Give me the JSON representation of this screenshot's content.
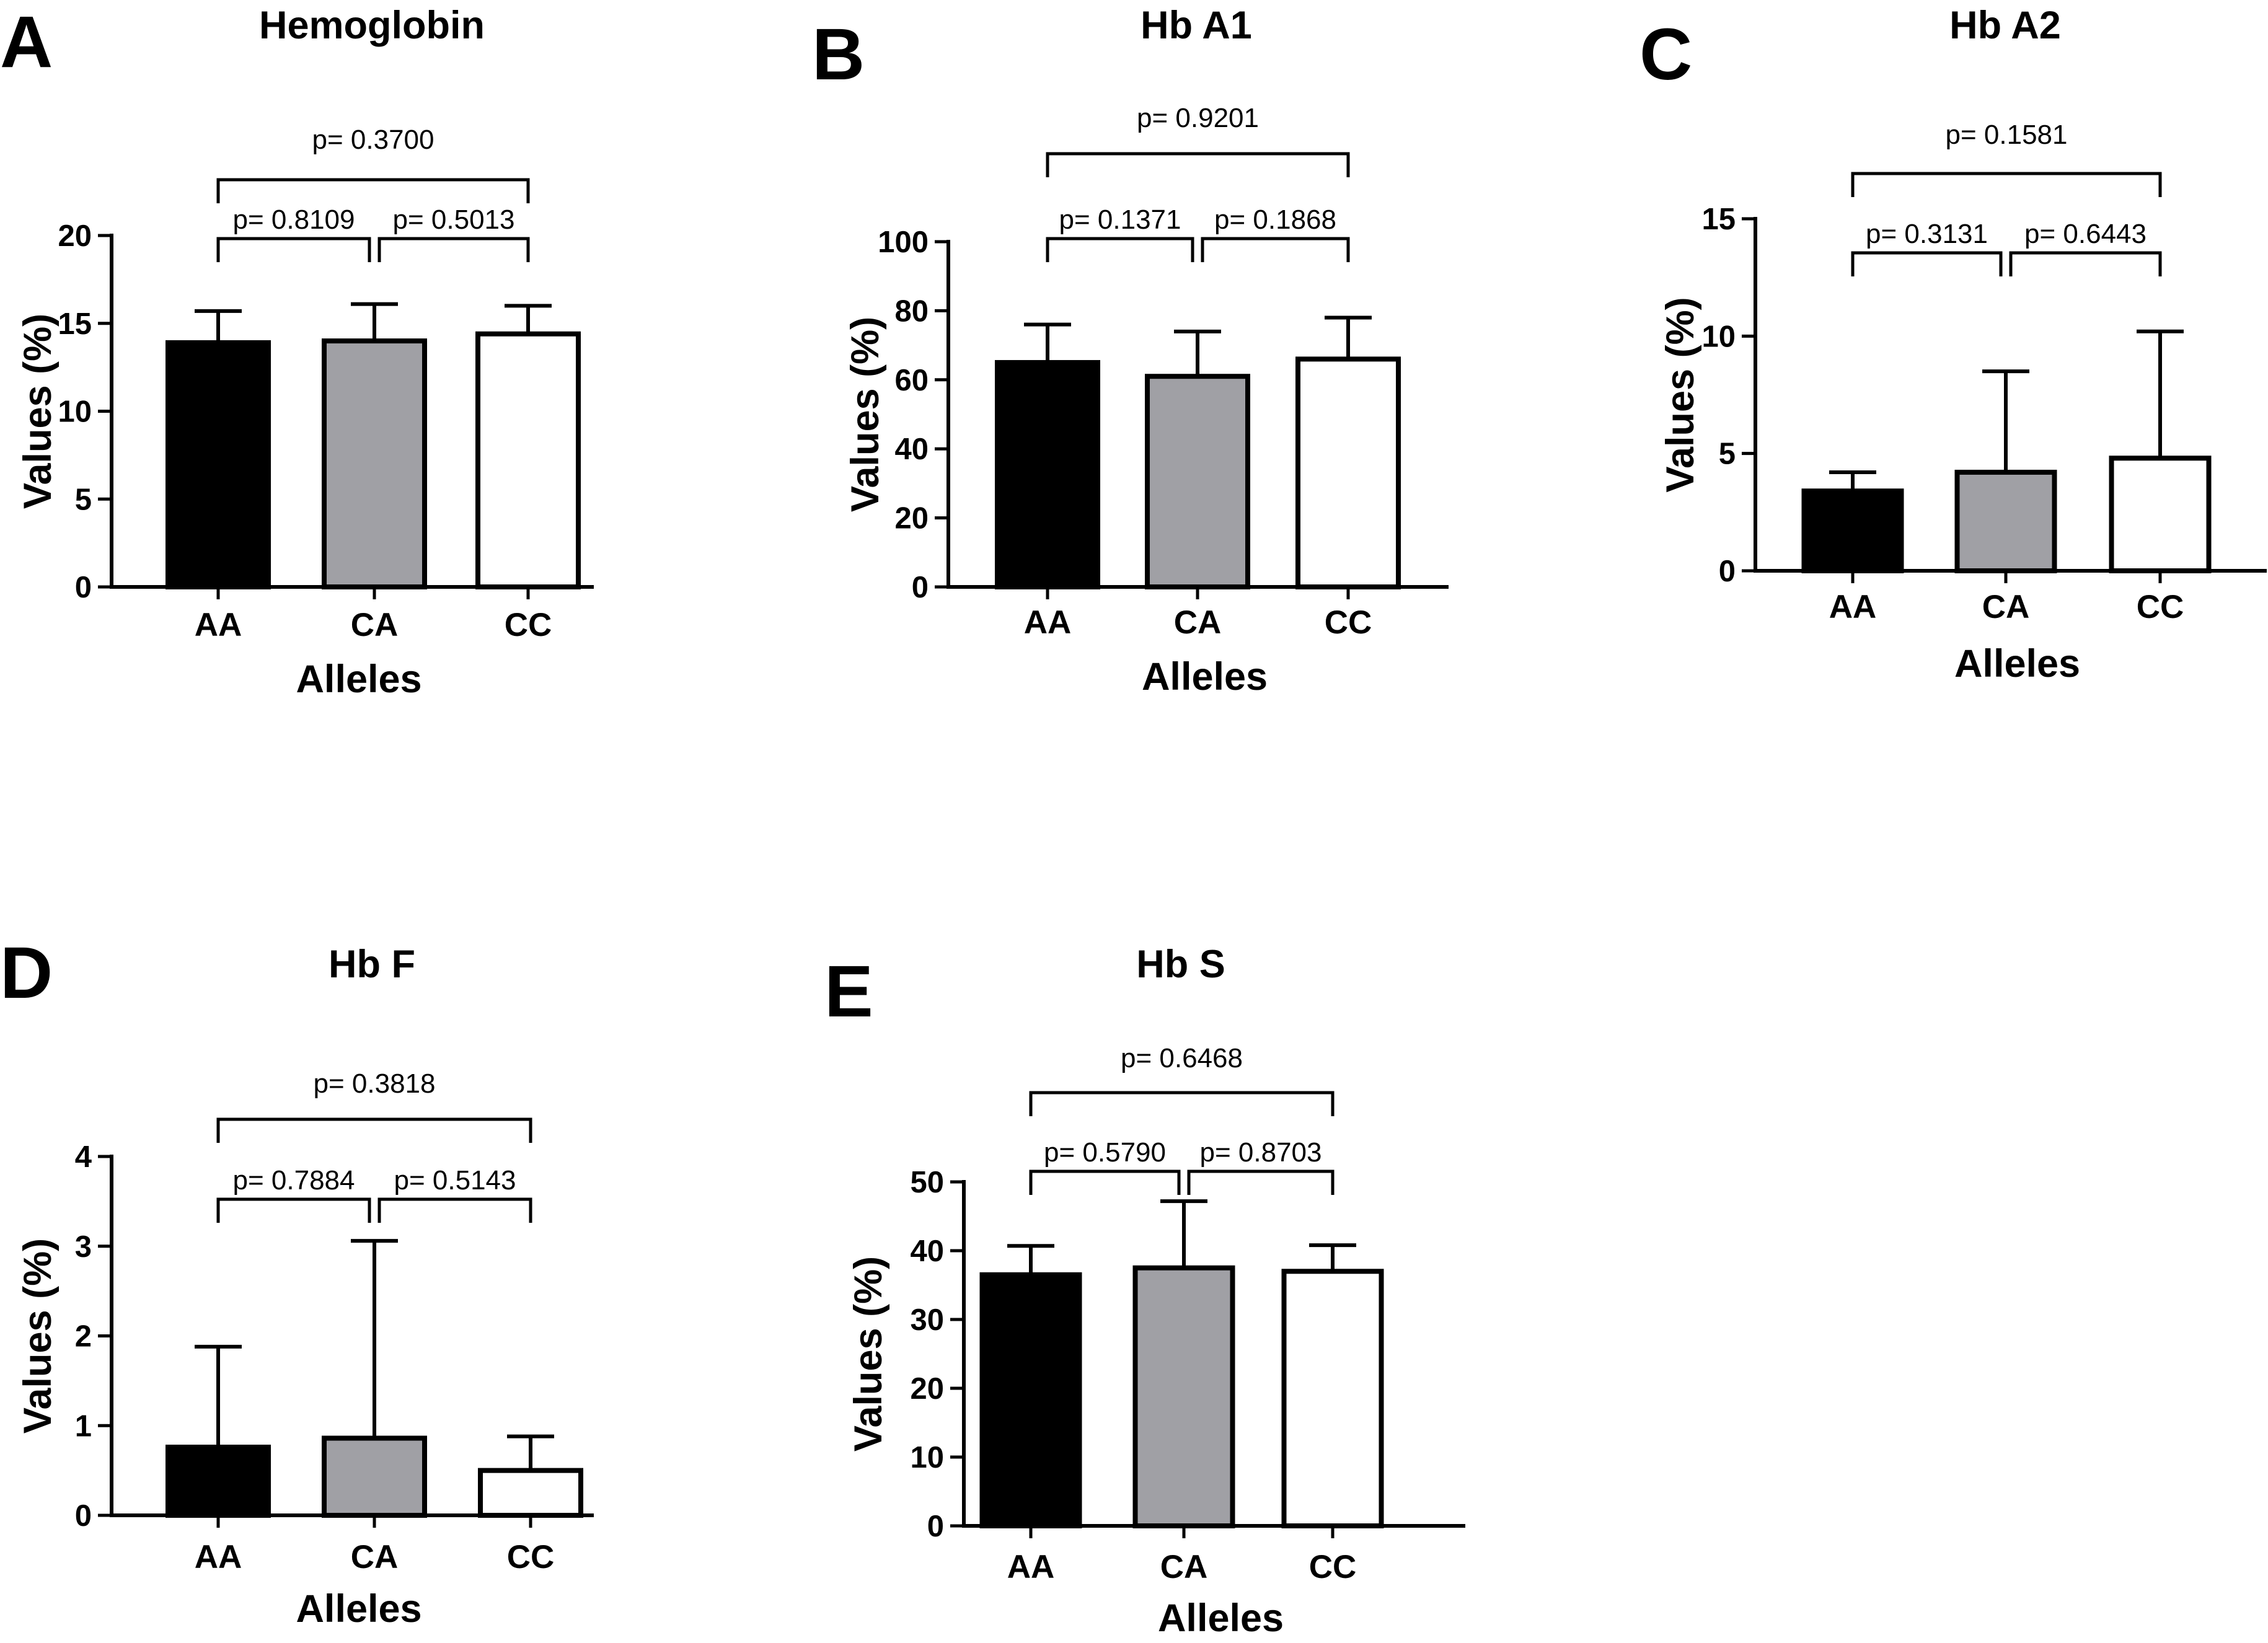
{
  "figure": {
    "bar_colors": {
      "AA": "#000000",
      "CA": "#a0a0a5",
      "CC": "#ffffff"
    }
  },
  "chart_data": [
    {
      "panel": "A",
      "type": "bar",
      "title": "Hemoglobin",
      "xlabel": "Alleles",
      "ylabel": "Values (%)",
      "categories": [
        "AA",
        "CA",
        "CC"
      ],
      "values": [
        13.9,
        14.0,
        14.4
      ],
      "error_upper": [
        15.7,
        16.1,
        16.0
      ],
      "ylim": [
        0,
        20
      ],
      "yticks": [
        0,
        5,
        10,
        15,
        20
      ],
      "comparisons": [
        {
          "from": "AA",
          "to": "CA",
          "label": "p= 0.8109"
        },
        {
          "from": "CA",
          "to": "CC",
          "label": "p= 0.5013"
        },
        {
          "from": "AA",
          "to": "CC",
          "label": "p= 0.3700"
        }
      ]
    },
    {
      "panel": "B",
      "type": "bar",
      "title": "Hb A1",
      "xlabel": "Alleles",
      "ylabel": "Values (%)",
      "categories": [
        "AA",
        "CA",
        "CC"
      ],
      "values": [
        65,
        61,
        66
      ],
      "error_upper": [
        76,
        74,
        78
      ],
      "ylim": [
        0,
        100
      ],
      "yticks": [
        0,
        20,
        40,
        60,
        80,
        100
      ],
      "comparisons": [
        {
          "from": "AA",
          "to": "CA",
          "label": "p= 0.1371"
        },
        {
          "from": "CA",
          "to": "CC",
          "label": "p= 0.1868"
        },
        {
          "from": "AA",
          "to": "CC",
          "label": "p= 0.9201"
        }
      ]
    },
    {
      "panel": "C",
      "type": "bar",
      "title": "Hb A2",
      "xlabel": "Alleles",
      "ylabel": "Values (%)",
      "categories": [
        "AA",
        "CA",
        "CC"
      ],
      "values": [
        3.4,
        4.2,
        4.8
      ],
      "error_upper": [
        4.2,
        8.5,
        10.2
      ],
      "ylim": [
        0,
        15
      ],
      "yticks": [
        0,
        5,
        10,
        15
      ],
      "comparisons": [
        {
          "from": "AA",
          "to": "CA",
          "label": "p= 0.3131"
        },
        {
          "from": "CA",
          "to": "CC",
          "label": "p= 0.6443"
        },
        {
          "from": "AA",
          "to": "CC",
          "label": "p= 0.1581"
        }
      ]
    },
    {
      "panel": "D",
      "type": "bar",
      "title": "Hb F",
      "xlabel": "Alleles",
      "ylabel": "Values (%)",
      "categories": [
        "AA",
        "CA",
        "CC"
      ],
      "values": [
        0.76,
        0.86,
        0.5
      ],
      "error_upper": [
        1.88,
        3.06,
        0.88
      ],
      "ylim": [
        0,
        4
      ],
      "yticks": [
        0,
        1,
        2,
        3,
        4
      ],
      "comparisons": [
        {
          "from": "AA",
          "to": "CA",
          "label": "p= 0.7884"
        },
        {
          "from": "CA",
          "to": "CC",
          "label": "p= 0.5143"
        },
        {
          "from": "AA",
          "to": "CC",
          "label": "p= 0.3818"
        }
      ]
    },
    {
      "panel": "E",
      "type": "bar",
      "title": "Hb S",
      "xlabel": "Alleles",
      "ylabel": "Values (%)",
      "categories": [
        "AA",
        "CA",
        "CC"
      ],
      "values": [
        36.5,
        37.5,
        37
      ],
      "error_upper": [
        40.7,
        47.2,
        40.8
      ],
      "ylim": [
        0,
        50
      ],
      "yticks": [
        0,
        10,
        20,
        30,
        40,
        50
      ],
      "comparisons": [
        {
          "from": "AA",
          "to": "CA",
          "label": "p= 0.5790"
        },
        {
          "from": "CA",
          "to": "CC",
          "label": "p= 0.8703"
        },
        {
          "from": "AA",
          "to": "CC",
          "label": "p= 0.6468"
        }
      ]
    }
  ]
}
